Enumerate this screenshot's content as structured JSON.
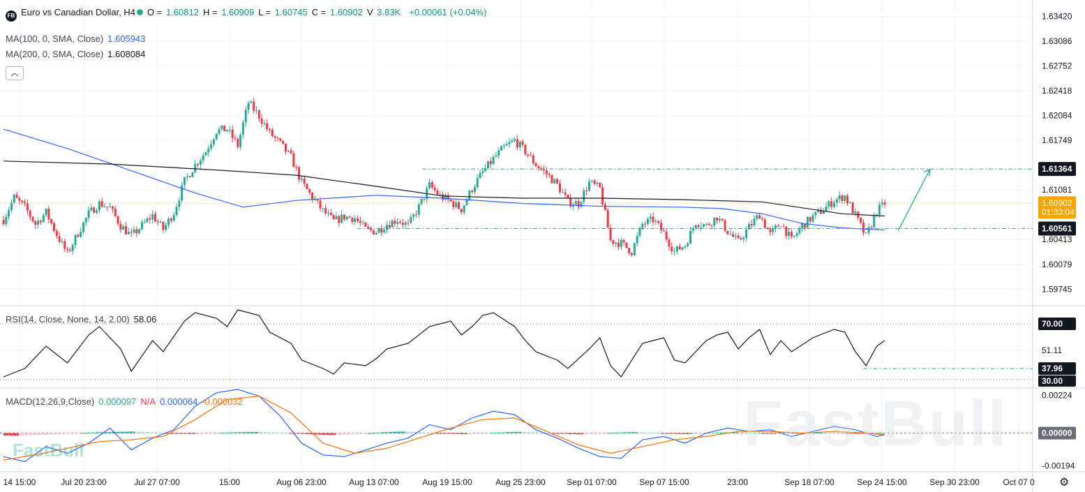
{
  "header": {
    "badge": "FB",
    "symbol": "Euro vs Canadian Dollar, H4",
    "ohlc": [
      {
        "label": "O",
        "value": "1.60812"
      },
      {
        "label": "H",
        "value": "1.60909"
      },
      {
        "label": "L",
        "value": "1.60745"
      },
      {
        "label": "C",
        "value": "1.60902"
      },
      {
        "label": "V",
        "value": "3.83K"
      }
    ],
    "change": "+0.00061 (+0.04%)"
  },
  "indicators": {
    "ma100_label": "MA(100, 0, SMA, Close)",
    "ma100_value": "1.605943",
    "ma200_label": "MA(200, 0, SMA, Close)",
    "ma200_value": "1.608084",
    "rsi_label": "RSI(14, Close, None, 14, 2.00)",
    "rsi_value": "58.06",
    "macd_label": "MACD(12,26,9,Close)",
    "macd_hist": "0.000097",
    "macd_na": "N/A",
    "macd_line": "0.000064",
    "macd_signal": "-0.000032"
  },
  "colors": {
    "up": "#22ab94",
    "down": "#f23645",
    "ma100": "#2962ff",
    "ma200": "#131722",
    "macd": "#2962ff",
    "signal": "#ff6d00",
    "hline": "#22ab94",
    "last_price": "#f7a600",
    "accent_value": "#089981"
  },
  "watermark": "FastBull",
  "chart_data": [
    {
      "type": "candlestick",
      "title": "Euro vs Canadian Dollar, H4",
      "x_ticks": [
        "14 15:00",
        "Jul 20 23:00",
        "Jul 27 07:00",
        "15:00",
        "Aug 06 23:00",
        "Aug 13 07:00",
        "Aug 19 15:00",
        "Aug 25 23:00",
        "Sep 01 07:00",
        "Sep 07 15:00",
        "23:00",
        "Sep 18 07:00",
        "Sep 24 15:00",
        "Sep 30 23:00",
        "Oct 07 0"
      ],
      "y_ticks": [
        "1.63420",
        "1.63086",
        "1.62752",
        "1.62418",
        "1.62084",
        "1.61749",
        "1.61081",
        "1.60413",
        "1.60079",
        "1.59745"
      ],
      "ylim": [
        1.5955,
        1.635
      ],
      "close_path": [
        [
          0,
          1.6068
        ],
        [
          4,
          1.6098
        ],
        [
          8,
          1.6085
        ],
        [
          12,
          1.6062
        ],
        [
          16,
          1.6078
        ],
        [
          20,
          1.6048
        ],
        [
          24,
          1.6022
        ],
        [
          28,
          1.605
        ],
        [
          32,
          1.6076
        ],
        [
          36,
          1.609
        ],
        [
          40,
          1.6084
        ],
        [
          44,
          1.606
        ],
        [
          48,
          1.6046
        ],
        [
          52,
          1.606
        ],
        [
          56,
          1.6074
        ],
        [
          60,
          1.6055
        ],
        [
          64,
          1.6078
        ],
        [
          68,
          1.612
        ],
        [
          72,
          1.6142
        ],
        [
          76,
          1.616
        ],
        [
          80,
          1.6188
        ],
        [
          84,
          1.619
        ],
        [
          88,
          1.6168
        ],
        [
          92,
          1.6226
        ],
        [
          96,
          1.6208
        ],
        [
          100,
          1.6185
        ],
        [
          104,
          1.617
        ],
        [
          108,
          1.6152
        ],
        [
          112,
          1.6118
        ],
        [
          116,
          1.6098
        ],
        [
          120,
          1.608
        ],
        [
          124,
          1.6066
        ],
        [
          128,
          1.6072
        ],
        [
          132,
          1.607
        ],
        [
          136,
          1.6055
        ],
        [
          140,
          1.6052
        ],
        [
          144,
          1.6062
        ],
        [
          148,
          1.6068
        ],
        [
          152,
          1.606
        ],
        [
          156,
          1.6085
        ],
        [
          160,
          1.6114
        ],
        [
          164,
          1.61
        ],
        [
          168,
          1.6092
        ],
        [
          172,
          1.6082
        ],
        [
          176,
          1.611
        ],
        [
          180,
          1.6132
        ],
        [
          184,
          1.615
        ],
        [
          188,
          1.6165
        ],
        [
          192,
          1.6175
        ],
        [
          196,
          1.616
        ],
        [
          200,
          1.6142
        ],
        [
          204,
          1.613
        ],
        [
          208,
          1.6115
        ],
        [
          212,
          1.6092
        ],
        [
          216,
          1.609
        ],
        [
          220,
          1.6118
        ],
        [
          224,
          1.611
        ],
        [
          228,
          1.604
        ],
        [
          232,
          1.6036
        ],
        [
          236,
          1.6025
        ],
        [
          240,
          1.6062
        ],
        [
          244,
          1.6068
        ],
        [
          248,
          1.605
        ],
        [
          252,
          1.6025
        ],
        [
          256,
          1.6034
        ],
        [
          260,
          1.6065
        ],
        [
          264,
          1.606
        ],
        [
          268,
          1.6072
        ],
        [
          272,
          1.6052
        ],
        [
          276,
          1.6038
        ],
        [
          280,
          1.6058
        ],
        [
          284,
          1.6075
        ],
        [
          288,
          1.6048
        ],
        [
          292,
          1.6064
        ],
        [
          296,
          1.604
        ],
        [
          300,
          1.606
        ],
        [
          304,
          1.6072
        ],
        [
          308,
          1.6082
        ],
        [
          312,
          1.6094
        ],
        [
          316,
          1.61
        ],
        [
          320,
          1.6074
        ],
        [
          324,
          1.6045
        ],
        [
          328,
          1.608
        ],
        [
          331,
          1.609
        ]
      ],
      "ma100_path": [
        [
          0,
          1.619
        ],
        [
          24,
          1.6164
        ],
        [
          48,
          1.6134
        ],
        [
          72,
          1.6104
        ],
        [
          90,
          1.6085
        ],
        [
          110,
          1.6094
        ],
        [
          140,
          1.6101
        ],
        [
          165,
          1.6097
        ],
        [
          195,
          1.609
        ],
        [
          225,
          1.6086
        ],
        [
          255,
          1.6085
        ],
        [
          270,
          1.6083
        ],
        [
          285,
          1.6076
        ],
        [
          300,
          1.6063
        ],
        [
          315,
          1.6057
        ],
        [
          331,
          1.6054
        ]
      ],
      "ma200_path": [
        [
          0,
          1.6147
        ],
        [
          40,
          1.6143
        ],
        [
          80,
          1.6135
        ],
        [
          110,
          1.6128
        ],
        [
          140,
          1.6113
        ],
        [
          165,
          1.61
        ],
        [
          195,
          1.6097
        ],
        [
          225,
          1.6097
        ],
        [
          255,
          1.6095
        ],
        [
          285,
          1.6092
        ],
        [
          300,
          1.6084
        ],
        [
          315,
          1.6076
        ],
        [
          331,
          1.6073
        ]
      ],
      "horizontal_levels": [
        {
          "value": "1.61364",
          "y": 1.61364
        },
        {
          "value": "1.60561",
          "y": 1.60561
        }
      ],
      "last_price": {
        "value": "1.60902",
        "countdown": "01:33:04"
      },
      "projection": {
        "from": [
          336,
          1.6053
        ],
        "to": [
          348,
          1.6136
        ]
      }
    },
    {
      "type": "line",
      "title": "RSI(14, Close, None, 14, 2.00)",
      "ylim": [
        24,
        82
      ],
      "levels": [
        "70.00",
        "51.11",
        "30.00"
      ],
      "level_line": {
        "value": "37.96",
        "y": 37.96
      },
      "values_path": [
        [
          0,
          32
        ],
        [
          8,
          38
        ],
        [
          16,
          54
        ],
        [
          24,
          42
        ],
        [
          32,
          62
        ],
        [
          36,
          68
        ],
        [
          44,
          52
        ],
        [
          48,
          36
        ],
        [
          56,
          58
        ],
        [
          60,
          50
        ],
        [
          68,
          72
        ],
        [
          72,
          78
        ],
        [
          80,
          74
        ],
        [
          84,
          68
        ],
        [
          88,
          80
        ],
        [
          96,
          76
        ],
        [
          100,
          64
        ],
        [
          108,
          56
        ],
        [
          112,
          44
        ],
        [
          120,
          38
        ],
        [
          124,
          34
        ],
        [
          128,
          42
        ],
        [
          136,
          40
        ],
        [
          140,
          45
        ],
        [
          144,
          52
        ],
        [
          152,
          56
        ],
        [
          160,
          68
        ],
        [
          168,
          72
        ],
        [
          172,
          62
        ],
        [
          176,
          68
        ],
        [
          180,
          76
        ],
        [
          184,
          78
        ],
        [
          192,
          68
        ],
        [
          196,
          58
        ],
        [
          200,
          50
        ],
        [
          208,
          44
        ],
        [
          212,
          38
        ],
        [
          220,
          52
        ],
        [
          224,
          60
        ],
        [
          228,
          40
        ],
        [
          232,
          32
        ],
        [
          240,
          56
        ],
        [
          248,
          60
        ],
        [
          252,
          44
        ],
        [
          256,
          42
        ],
        [
          264,
          58
        ],
        [
          268,
          62
        ],
        [
          272,
          64
        ],
        [
          276,
          52
        ],
        [
          280,
          60
        ],
        [
          284,
          66
        ],
        [
          288,
          48
        ],
        [
          292,
          58
        ],
        [
          296,
          50
        ],
        [
          304,
          60
        ],
        [
          312,
          66
        ],
        [
          316,
          64
        ],
        [
          320,
          50
        ],
        [
          324,
          40
        ],
        [
          328,
          54
        ],
        [
          331,
          58
        ]
      ]
    },
    {
      "type": "bar",
      "title": "MACD(12,26,9,Close)",
      "y_ticks": [
        "0.00224",
        "0.00000",
        "-0.00194"
      ],
      "ylim": [
        -0.0023,
        0.0026
      ],
      "histogram": [
        -1.5,
        -1.6,
        -1.5,
        -1.4,
        -1.2,
        -1.0,
        -0.8,
        -0.6,
        -0.4,
        -0.2,
        0.1,
        0.3,
        0.5,
        0.6,
        0.7,
        0.8,
        0.9,
        0.8,
        0.6,
        0.4,
        0.2,
        -0.1,
        -0.3,
        -0.4,
        -0.5,
        -0.4,
        -0.3,
        -0.1,
        0.2,
        0.4,
        0.5,
        0.6,
        0.7,
        0.6,
        0.5,
        0.3,
        0.1,
        -0.1,
        -0.4,
        -0.6,
        -0.8,
        -1.0,
        -1.1,
        -1.0,
        -0.8,
        -0.6,
        -0.3,
        0.0,
        0.3,
        0.6,
        0.8,
        0.9,
        0.8,
        0.6,
        0.4,
        0.1,
        -0.2,
        -0.4,
        -0.5,
        -0.6,
        -0.5,
        -0.3,
        -0.1,
        0.2,
        0.4,
        0.6,
        0.7,
        0.6,
        0.4,
        0.2,
        0.0,
        -0.2,
        -0.4,
        -0.6,
        -0.7,
        -0.6,
        -0.4,
        -0.2,
        0.1,
        0.3,
        0.5,
        0.6,
        0.5,
        0.3,
        0.1,
        -0.1,
        -0.3,
        -0.5,
        -0.6,
        -0.5,
        -0.3,
        -0.1,
        0.2,
        0.4,
        0.5,
        0.4,
        0.2,
        0.0,
        -0.2,
        -0.3,
        -0.2,
        -0.1,
        0.1,
        0.2,
        0.3,
        0.3,
        0.2,
        0.1,
        0.0,
        -0.1,
        -0.2,
        -0.3,
        -0.2,
        0.1
      ],
      "macd_path": [
        [
          0,
          -1.4
        ],
        [
          8,
          -1.7
        ],
        [
          16,
          -0.8
        ],
        [
          24,
          -1.2
        ],
        [
          32,
          -0.6
        ],
        [
          40,
          0.3
        ],
        [
          48,
          -1.0
        ],
        [
          56,
          -0.3
        ],
        [
          64,
          0.2
        ],
        [
          72,
          1.6
        ],
        [
          80,
          2.4
        ],
        [
          88,
          2.6
        ],
        [
          96,
          2.2
        ],
        [
          104,
          1.0
        ],
        [
          112,
          -0.6
        ],
        [
          120,
          -1.3
        ],
        [
          128,
          -1.4
        ],
        [
          136,
          -1.0
        ],
        [
          144,
          -0.6
        ],
        [
          152,
          -0.3
        ],
        [
          160,
          0.5
        ],
        [
          168,
          0.2
        ],
        [
          176,
          0.9
        ],
        [
          184,
          1.3
        ],
        [
          192,
          1.1
        ],
        [
          200,
          0.2
        ],
        [
          208,
          -0.3
        ],
        [
          216,
          -0.9
        ],
        [
          224,
          -1.4
        ],
        [
          232,
          -1.5
        ],
        [
          240,
          -0.4
        ],
        [
          248,
          -0.2
        ],
        [
          256,
          -0.6
        ],
        [
          264,
          0.0
        ],
        [
          272,
          0.3
        ],
        [
          280,
          0.1
        ],
        [
          288,
          0.2
        ],
        [
          296,
          -0.2
        ],
        [
          304,
          0.1
        ],
        [
          312,
          0.4
        ],
        [
          320,
          0.2
        ],
        [
          328,
          -0.2
        ],
        [
          331,
          -0.1
        ]
      ],
      "signal_path": [
        [
          0,
          -1.6
        ],
        [
          12,
          -1.3
        ],
        [
          24,
          -0.9
        ],
        [
          36,
          -0.5
        ],
        [
          48,
          -0.4
        ],
        [
          60,
          -0.2
        ],
        [
          72,
          0.8
        ],
        [
          84,
          2.0
        ],
        [
          96,
          2.2
        ],
        [
          108,
          1.2
        ],
        [
          120,
          -0.6
        ],
        [
          132,
          -1.2
        ],
        [
          144,
          -0.9
        ],
        [
          156,
          -0.3
        ],
        [
          168,
          0.3
        ],
        [
          180,
          0.8
        ],
        [
          192,
          0.9
        ],
        [
          204,
          0.1
        ],
        [
          216,
          -0.7
        ],
        [
          228,
          -1.2
        ],
        [
          240,
          -0.8
        ],
        [
          252,
          -0.4
        ],
        [
          264,
          -0.2
        ],
        [
          276,
          0.1
        ],
        [
          288,
          0.1
        ],
        [
          300,
          0.0
        ],
        [
          312,
          0.1
        ],
        [
          324,
          0.0
        ],
        [
          331,
          -0.1
        ]
      ]
    }
  ]
}
